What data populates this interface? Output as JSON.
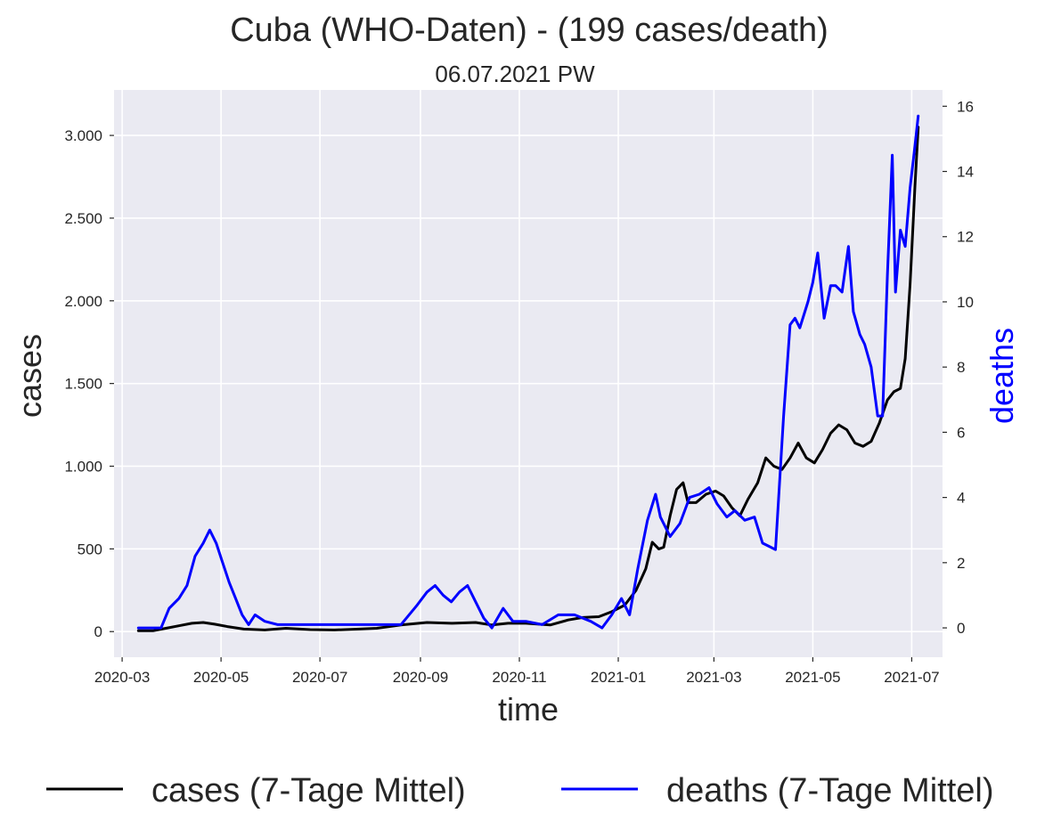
{
  "chart_data": {
    "type": "line",
    "title": "Cuba (WHO-Daten) - (199 cases/death)",
    "subtitle": "06.07.2021 PW",
    "xlabel": "time",
    "ylabel": "cases",
    "y2label": "deaths",
    "x_ticks": [
      "2020-03",
      "2020-05",
      "2020-07",
      "2020-09",
      "2020-11",
      "2021-01",
      "2021-03",
      "2021-05",
      "2021-07"
    ],
    "y_ticks": [
      {
        "value": 0,
        "label": "0"
      },
      {
        "value": 500,
        "label": "500"
      },
      {
        "value": 1000,
        "label": "1.000"
      },
      {
        "value": 1500,
        "label": "1.500"
      },
      {
        "value": 2000,
        "label": "2.000"
      },
      {
        "value": 2500,
        "label": "2.500"
      },
      {
        "value": 3000,
        "label": "3.000"
      }
    ],
    "y2_ticks": [
      0,
      2,
      4,
      6,
      8,
      10,
      12,
      14,
      16
    ],
    "xlim": [
      "2020-02-25",
      "2021-07-20"
    ],
    "ylim": [
      -155,
      3275
    ],
    "y2lim": [
      -0.9,
      16.5
    ],
    "grid": true,
    "legend_position": "bottom",
    "series": [
      {
        "name": "cases (7-Tage Mittel)",
        "axis": "left",
        "color": "#000000",
        "x": [
          "2020-03-11",
          "2020-03-20",
          "2020-03-28",
          "2020-04-05",
          "2020-04-13",
          "2020-04-20",
          "2020-04-27",
          "2020-05-05",
          "2020-05-15",
          "2020-05-28",
          "2020-06-10",
          "2020-06-25",
          "2020-07-10",
          "2020-07-25",
          "2020-08-05",
          "2020-08-20",
          "2020-09-05",
          "2020-09-20",
          "2020-10-05",
          "2020-10-15",
          "2020-10-25",
          "2020-11-05",
          "2020-11-20",
          "2020-12-01",
          "2020-12-10",
          "2020-12-20",
          "2020-12-28",
          "2021-01-05",
          "2021-01-12",
          "2021-01-18",
          "2021-01-22",
          "2021-01-26",
          "2021-01-29",
          "2021-02-02",
          "2021-02-06",
          "2021-02-10",
          "2021-02-13",
          "2021-02-18",
          "2021-02-24",
          "2021-03-02",
          "2021-03-07",
          "2021-03-12",
          "2021-03-17",
          "2021-03-22",
          "2021-03-28",
          "2021-04-02",
          "2021-04-07",
          "2021-04-12",
          "2021-04-17",
          "2021-04-22",
          "2021-04-27",
          "2021-05-02",
          "2021-05-07",
          "2021-05-12",
          "2021-05-17",
          "2021-05-22",
          "2021-05-27",
          "2021-06-01",
          "2021-06-06",
          "2021-06-11",
          "2021-06-16",
          "2021-06-20",
          "2021-06-24",
          "2021-06-27",
          "2021-06-30",
          "2021-07-03",
          "2021-07-05"
        ],
        "values": [
          5,
          5,
          20,
          35,
          50,
          55,
          45,
          30,
          15,
          10,
          20,
          12,
          10,
          15,
          20,
          40,
          55,
          50,
          55,
          40,
          50,
          50,
          40,
          70,
          85,
          90,
          120,
          160,
          250,
          380,
          540,
          500,
          510,
          700,
          860,
          900,
          780,
          780,
          830,
          850,
          820,
          750,
          700,
          800,
          900,
          1050,
          1000,
          980,
          1050,
          1140,
          1050,
          1020,
          1100,
          1200,
          1250,
          1220,
          1140,
          1120,
          1150,
          1260,
          1400,
          1450,
          1470,
          1650,
          2100,
          2700,
          3050
        ]
      },
      {
        "name": "deaths (7-Tage Mittel)",
        "axis": "right",
        "color": "#0000ff",
        "x": [
          "2020-03-11",
          "2020-03-25",
          "2020-03-30",
          "2020-04-05",
          "2020-04-10",
          "2020-04-15",
          "2020-04-20",
          "2020-04-24",
          "2020-04-28",
          "2020-05-02",
          "2020-05-06",
          "2020-05-10",
          "2020-05-14",
          "2020-05-18",
          "2020-05-22",
          "2020-05-28",
          "2020-06-05",
          "2020-06-20",
          "2020-07-10",
          "2020-07-25",
          "2020-08-10",
          "2020-08-20",
          "2020-08-25",
          "2020-08-30",
          "2020-09-05",
          "2020-09-10",
          "2020-09-15",
          "2020-09-20",
          "2020-09-25",
          "2020-09-30",
          "2020-10-05",
          "2020-10-10",
          "2020-10-15",
          "2020-10-22",
          "2020-10-28",
          "2020-11-05",
          "2020-11-15",
          "2020-11-25",
          "2020-12-05",
          "2020-12-15",
          "2020-12-22",
          "2020-12-28",
          "2021-01-03",
          "2021-01-08",
          "2021-01-13",
          "2021-01-19",
          "2021-01-24",
          "2021-01-27",
          "2021-02-02",
          "2021-02-08",
          "2021-02-14",
          "2021-02-20",
          "2021-02-26",
          "2021-03-03",
          "2021-03-09",
          "2021-03-14",
          "2021-03-20",
          "2021-03-26",
          "2021-03-31",
          "2021-04-04",
          "2021-04-08",
          "2021-04-13",
          "2021-04-17",
          "2021-04-20",
          "2021-04-23",
          "2021-04-28",
          "2021-05-01",
          "2021-05-04",
          "2021-05-08",
          "2021-05-12",
          "2021-05-15",
          "2021-05-19",
          "2021-05-23",
          "2021-05-26",
          "2021-05-30",
          "2021-06-02",
          "2021-06-06",
          "2021-06-10",
          "2021-06-13",
          "2021-06-16",
          "2021-06-19",
          "2021-06-21",
          "2021-06-24",
          "2021-06-27",
          "2021-06-30",
          "2021-07-03",
          "2021-07-05"
        ],
        "values": [
          0,
          0,
          0.6,
          0.9,
          1.3,
          2.2,
          2.6,
          3.0,
          2.6,
          2.0,
          1.4,
          0.9,
          0.4,
          0.1,
          0.4,
          0.2,
          0.1,
          0.1,
          0.1,
          0.1,
          0.1,
          0.1,
          0.4,
          0.7,
          1.1,
          1.3,
          1.0,
          0.8,
          1.1,
          1.3,
          0.8,
          0.3,
          0.0,
          0.6,
          0.2,
          0.2,
          0.1,
          0.4,
          0.4,
          0.2,
          0.0,
          0.4,
          0.9,
          0.4,
          1.8,
          3.3,
          4.1,
          3.4,
          2.8,
          3.2,
          4.0,
          4.1,
          4.3,
          3.8,
          3.4,
          3.6,
          3.3,
          3.4,
          2.6,
          2.5,
          2.4,
          6.5,
          9.3,
          9.5,
          9.2,
          10.0,
          10.6,
          11.5,
          9.5,
          10.5,
          10.5,
          10.3,
          11.7,
          9.7,
          9.0,
          8.7,
          8.0,
          6.5,
          6.5,
          10.8,
          14.5,
          10.3,
          12.2,
          11.7,
          13.5,
          14.8,
          15.7
        ]
      }
    ]
  }
}
